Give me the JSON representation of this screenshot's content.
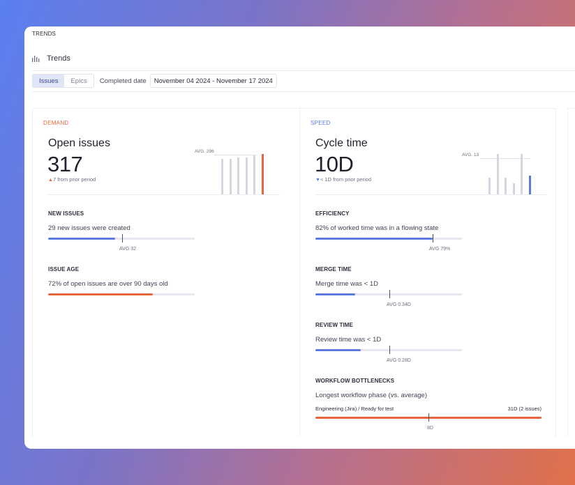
{
  "window": {
    "top_label": "TRENDS"
  },
  "header": {
    "icon": "bar-chart-icon",
    "title": "Trends"
  },
  "filters": {
    "tabs": [
      {
        "label": "Issues",
        "active": true
      },
      {
        "label": "Epics",
        "active": false
      }
    ],
    "date_label": "Completed date",
    "date_range": "November 04 2024 - November 17 2024"
  },
  "demand": {
    "section": "DEMAND",
    "kpi": {
      "name": "Open issues",
      "value": "317",
      "delta_arrow": "▲",
      "delta_num": "7",
      "delta_text": " from prior period",
      "avg_label": "AVG. 296",
      "spark": [
        0.88,
        0.88,
        0.92,
        0.92,
        0.97,
        1.0
      ]
    },
    "metrics": {
      "new_issues": {
        "title": "NEW ISSUES",
        "desc": "29 new issues were created",
        "avg": "AVG 32",
        "fill": 0.455,
        "marker": 0.505
      },
      "issue_age": {
        "title": "ISSUE AGE",
        "desc": "72% of open issues are over 90 days old",
        "fill": 0.715
      }
    }
  },
  "speed": {
    "section": "SPEED",
    "kpi": {
      "name": "Cycle time",
      "value": "10D",
      "delta_arrow": "▼",
      "delta_num": "< 1D",
      "delta_text": " from prior period",
      "avg_label": "AVG. 13",
      "spark": [
        0.42,
        1.0,
        0.42,
        0.28,
        1.0,
        0.47
      ]
    },
    "metrics": {
      "efficiency": {
        "title": "EFFICIENCY",
        "desc": "82% of worked time was in a flowing state",
        "avg": "AVG 79%",
        "fill": 0.8,
        "marker": 0.8
      },
      "merge_time": {
        "title": "MERGE TIME",
        "desc": "Merge time was < 1D",
        "avg": "AVG 0.34D",
        "fill": 0.27,
        "marker": 0.505
      },
      "review_time": {
        "title": "REVIEW TIME",
        "desc": "Review time was < 1D",
        "avg": "AVG 0.28D",
        "fill": 0.31,
        "marker": 0.505
      },
      "workflow": {
        "title": "WORKFLOW BOTTLENECKS",
        "desc": "Longest workflow phase (vs. average)",
        "phase": "Engineering (Jira) / Ready for test",
        "phase_value": "31D (2 issues)",
        "avg": "8D",
        "fill": 1.0,
        "marker": 0.5
      }
    }
  },
  "colors": {
    "accent_red": "#e8663c",
    "accent_blue": "#5b7be0"
  }
}
